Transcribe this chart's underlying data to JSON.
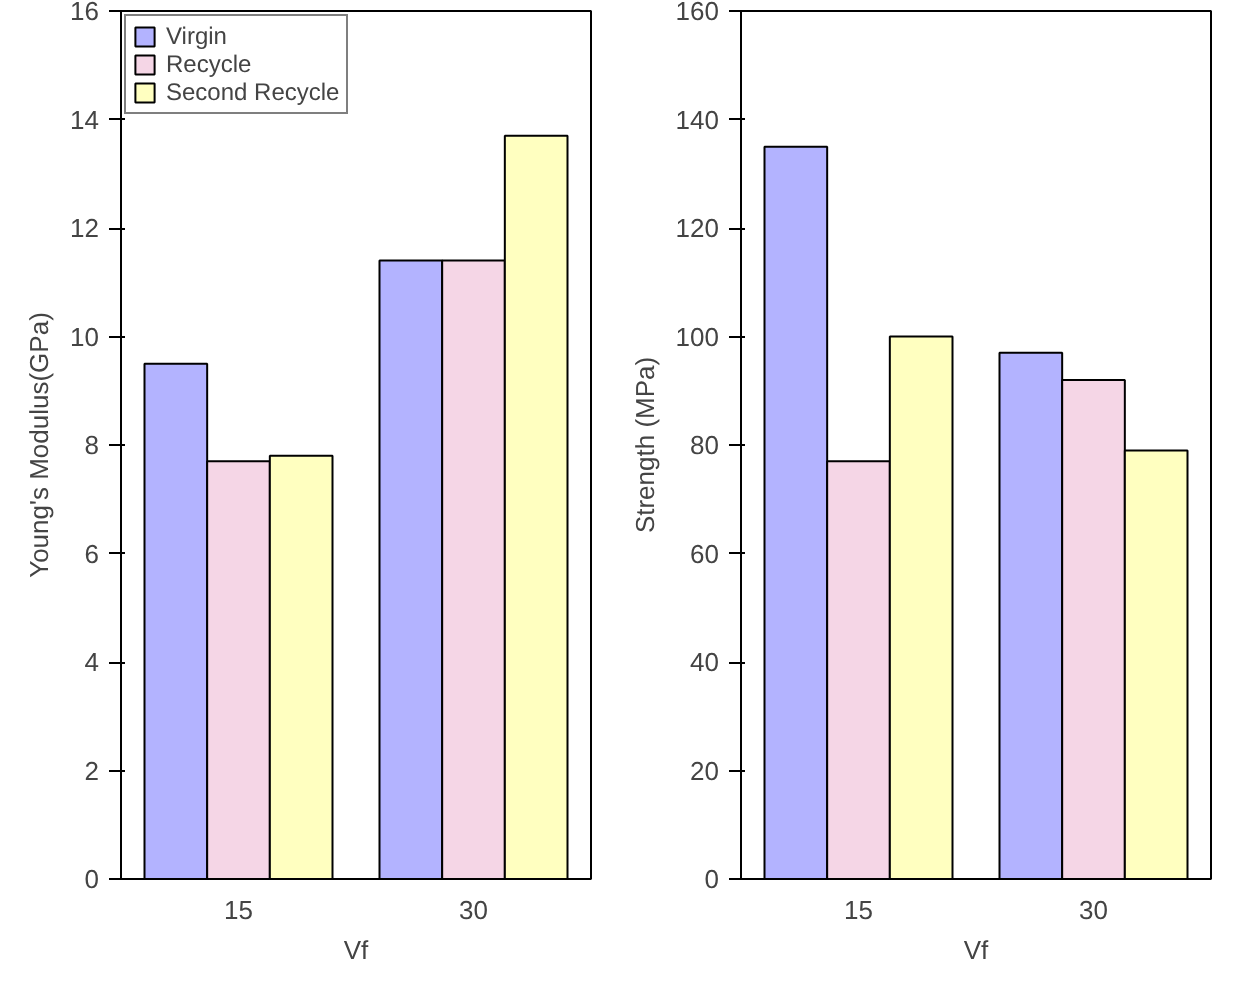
{
  "chart_data": [
    {
      "type": "bar",
      "categories": [
        "15",
        "30"
      ],
      "xlabel": "Vf",
      "ylabel": "Young's Modulus(GPa)",
      "ylim": [
        0,
        16
      ],
      "yticks": [
        0,
        2,
        4,
        6,
        8,
        10,
        12,
        14,
        16
      ],
      "grid": false,
      "legend": "top left",
      "series": [
        {
          "name": "Virgin",
          "color": "#b3b3ff",
          "values": [
            9.5,
            11.4
          ]
        },
        {
          "name": "Recycle",
          "color": "#f5d6e6",
          "values": [
            7.7,
            11.4
          ]
        },
        {
          "name": "Second Recycle",
          "color": "#ffffc0",
          "values": [
            7.8,
            13.7
          ]
        }
      ]
    },
    {
      "type": "bar",
      "categories": [
        "15",
        "30"
      ],
      "xlabel": "Vf",
      "ylabel": "Strength (MPa)",
      "ylim": [
        0,
        160
      ],
      "yticks": [
        0,
        20,
        40,
        60,
        80,
        100,
        120,
        140,
        160
      ],
      "grid": false,
      "series": [
        {
          "color": "#b3b3ff",
          "values": [
            135,
            97
          ]
        },
        {
          "color": "#f5d6e6",
          "values": [
            77,
            92
          ]
        },
        {
          "color": "#ffffc0",
          "values": [
            100,
            79
          ]
        }
      ]
    }
  ]
}
